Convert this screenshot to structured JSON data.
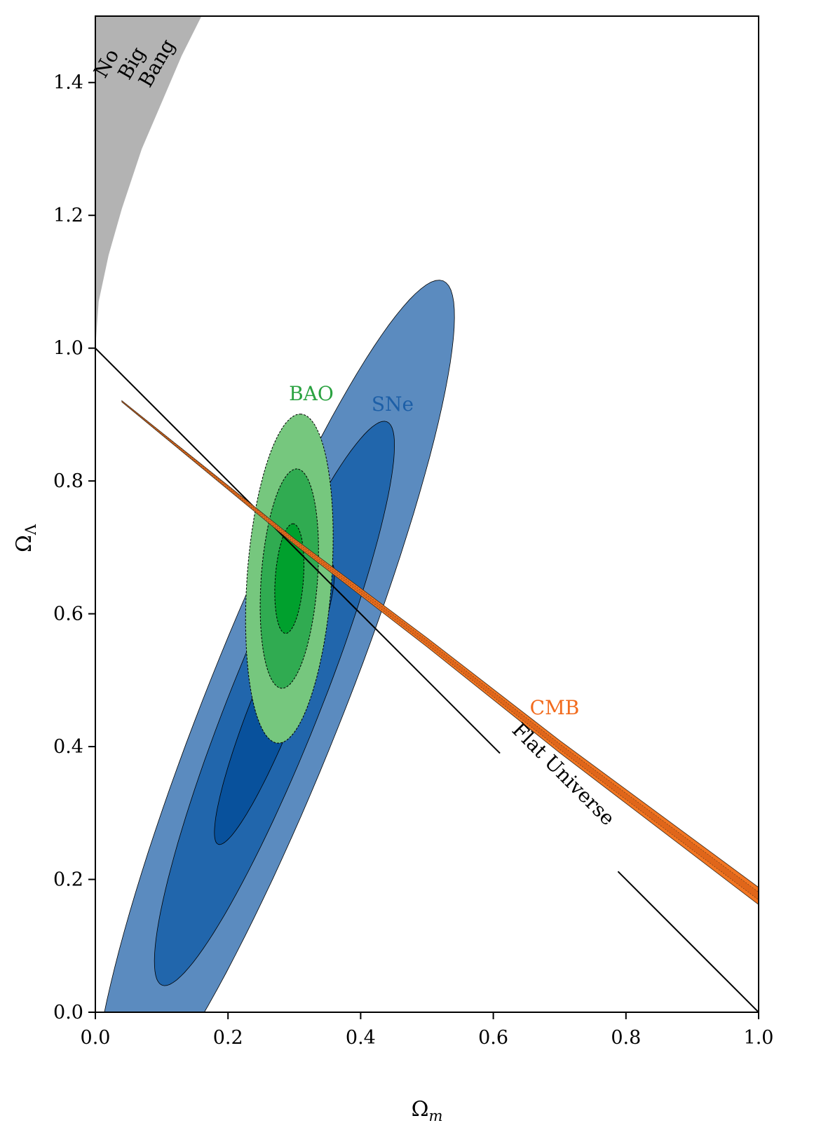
{
  "chart_data": {
    "type": "contour",
    "xlabel": "Ωm",
    "ylabel": "ΩΛ",
    "xlim": [
      0.0,
      1.0
    ],
    "ylim": [
      0.0,
      1.5
    ],
    "xticks": [
      "0.0",
      "0.2",
      "0.4",
      "0.6",
      "0.8",
      "1.0"
    ],
    "yticks": [
      "0.0",
      "0.2",
      "0.4",
      "0.6",
      "0.8",
      "1.0",
      "1.2",
      "1.4"
    ],
    "grid": false,
    "regions": {
      "no_big_bang": {
        "label_lines": [
          "No",
          "Big",
          "Bang"
        ],
        "color": "#b3b3b3",
        "boundary": [
          [
            0.0,
            1.0
          ],
          [
            0.005,
            1.07
          ],
          [
            0.02,
            1.14
          ],
          [
            0.04,
            1.21
          ],
          [
            0.07,
            1.3
          ],
          [
            0.1,
            1.37
          ],
          [
            0.13,
            1.44
          ],
          [
            0.16,
            1.5
          ]
        ]
      }
    },
    "lines": {
      "flat_universe": {
        "label": "Flat Universe",
        "from": [
          0.0,
          1.0
        ],
        "to": [
          1.0,
          0.0
        ],
        "color": "#000000"
      }
    },
    "series": [
      {
        "name": "SNe",
        "label_color": "#1d5fa7",
        "center": [
          0.27,
          0.465
        ],
        "sigma_x": 0.0905,
        "sigma_y": 0.2125,
        "rho": 0.914,
        "levels": [
          1,
          2,
          3
        ],
        "colors": [
          "#08519c",
          "#2166ac",
          "#5b8bbf"
        ]
      },
      {
        "name": "BAO",
        "label_color": "#2aa240",
        "center": [
          0.2925,
          0.653
        ],
        "sigma_x": 0.022,
        "sigma_y": 0.0826,
        "rho": 0.25,
        "levels": [
          1,
          2,
          3
        ],
        "colors": [
          "#00a02d",
          "#30ab51",
          "#76c77e"
        ]
      },
      {
        "name": "CMB",
        "label_color": "#f26b1d",
        "color": "#f27521",
        "centerline": [
          [
            0.04,
            0.92
          ],
          [
            0.3,
            0.709
          ],
          [
            0.5,
            0.557
          ],
          [
            0.7,
            0.4
          ],
          [
            1.0,
            0.175
          ]
        ],
        "half_width_start": 0.001,
        "half_width_end": 0.013
      }
    ]
  }
}
